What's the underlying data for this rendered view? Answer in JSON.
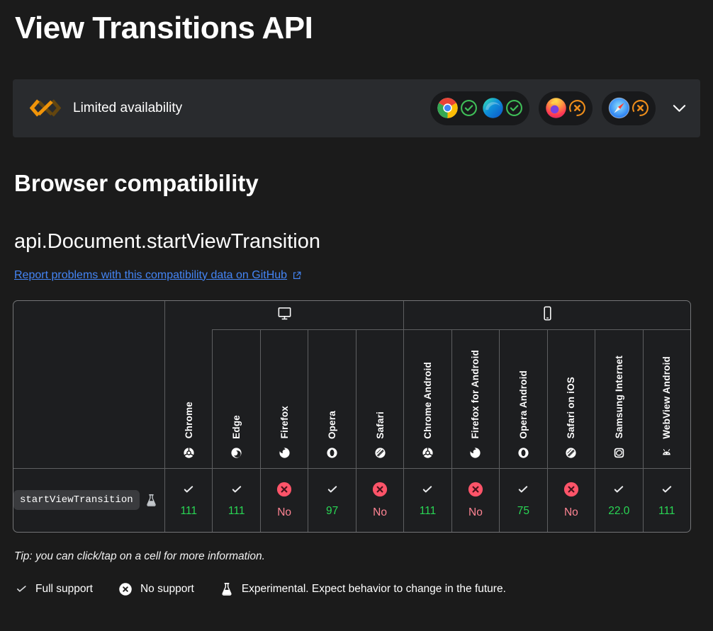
{
  "page": {
    "title": "View Transitions API"
  },
  "banner": {
    "label": "Limited availability",
    "icon": "baseline-limited-icon",
    "expand_icon": "chevron-down-icon",
    "groups": [
      {
        "chips": [
          {
            "browser": "chrome-color-icon",
            "status": "supported"
          },
          {
            "browser": "edge-color-icon",
            "status": "supported"
          }
        ]
      },
      {
        "chips": [
          {
            "browser": "firefox-color-icon",
            "status": "unsupported"
          }
        ]
      },
      {
        "chips": [
          {
            "browser": "safari-color-icon",
            "status": "unsupported"
          }
        ]
      }
    ]
  },
  "section": {
    "heading": "Browser compatibility",
    "subheading": "api.Document.startViewTransition",
    "report_link": "Report problems with this compatibility data on GitHub",
    "external_icon": "external-link-icon"
  },
  "table": {
    "platforms": [
      {
        "name": "desktop",
        "icon": "desktop-icon",
        "colspan": "5"
      },
      {
        "name": "mobile",
        "icon": "mobile-icon",
        "colspan": "6"
      }
    ],
    "browsers": [
      {
        "label": "Chrome",
        "icon": "chrome"
      },
      {
        "label": "Edge",
        "icon": "edge"
      },
      {
        "label": "Firefox",
        "icon": "firefox"
      },
      {
        "label": "Opera",
        "icon": "opera"
      },
      {
        "label": "Safari",
        "icon": "safari"
      },
      {
        "label": "Chrome Android",
        "icon": "chrome"
      },
      {
        "label": "Firefox for Android",
        "icon": "firefox"
      },
      {
        "label": "Opera Android",
        "icon": "opera"
      },
      {
        "label": "Safari on iOS",
        "icon": "safari"
      },
      {
        "label": "Samsung Internet",
        "icon": "samsung"
      },
      {
        "label": "WebView Android",
        "icon": "android"
      }
    ],
    "feature": {
      "name": "startViewTransition",
      "experimental": true,
      "experimental_icon": "flask-icon"
    },
    "support": [
      {
        "supported": true,
        "version": "111"
      },
      {
        "supported": true,
        "version": "111"
      },
      {
        "supported": false,
        "version": "No"
      },
      {
        "supported": true,
        "version": "97"
      },
      {
        "supported": false,
        "version": "No"
      },
      {
        "supported": true,
        "version": "111"
      },
      {
        "supported": false,
        "version": "No"
      },
      {
        "supported": true,
        "version": "75"
      },
      {
        "supported": false,
        "version": "No"
      },
      {
        "supported": true,
        "version": "22.0"
      },
      {
        "supported": true,
        "version": "111"
      }
    ]
  },
  "tip": "Tip: you can click/tap on a cell for more information.",
  "legend": [
    {
      "icon": "legend-check-icon",
      "label": "Full support"
    },
    {
      "icon": "cross-circle-icon",
      "label": "No support"
    },
    {
      "icon": "flask-icon",
      "label": "Experimental. Expect behavior to change in the future."
    }
  ],
  "colors": {
    "supported_text": "#29d654",
    "unsupported_text": "#ff8493",
    "no_badge": "#ff5469",
    "link": "#4485f5",
    "baseline_orange": "#f09409",
    "check_ring_green": "#3fbf58",
    "cross_ring_orange": "#ef8e1b"
  }
}
